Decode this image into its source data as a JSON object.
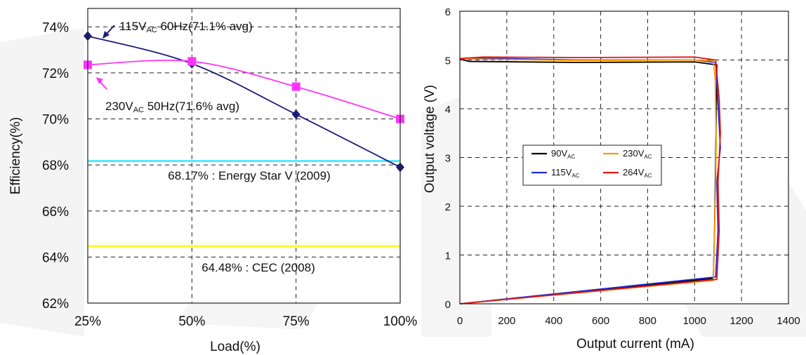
{
  "chart_data": [
    {
      "type": "line",
      "xlabel": "Load(%)",
      "ylabel": "Efficiency(%)",
      "categories": [
        "25%",
        "50%",
        "75%",
        "100%"
      ],
      "x": [
        25,
        50,
        75,
        100
      ],
      "xlim": [
        25,
        100
      ],
      "ylim": [
        62,
        74.8
      ],
      "yticks": [
        62,
        64,
        66,
        68,
        70,
        72,
        74
      ],
      "ytick_labels": [
        "62%",
        "64%",
        "66%",
        "68%",
        "70%",
        "72%",
        "74%"
      ],
      "grid": true,
      "series": [
        {
          "name": "115VAC 60Hz(71.1% avg)",
          "name_parts": [
            "115V",
            "AC",
            " 60Hz(71.1% avg)"
          ],
          "color": "#1c1c78",
          "marker": "diamond",
          "values": [
            73.6,
            72.4,
            70.2,
            67.9
          ]
        },
        {
          "name": "230VAC 50Hz(71.6% avg)",
          "name_parts": [
            "230V",
            "AC",
            " 50Hz(71.6% avg)"
          ],
          "color": "#ff33ff",
          "marker": "square",
          "values": [
            72.35,
            72.5,
            71.4,
            70.0
          ]
        }
      ],
      "reference_lines": [
        {
          "label": "68.17% : Energy Star V (2009)",
          "value": 68.17,
          "color": "#33e6ff"
        },
        {
          "label": "64.48% : CEC (2008)",
          "value": 64.48,
          "color": "#ffff00"
        }
      ]
    },
    {
      "type": "line",
      "xlabel": "Output current (mA)",
      "ylabel": "Output voltage (V)",
      "xlim": [
        0,
        1400
      ],
      "ylim": [
        0,
        6
      ],
      "xticks": [
        0,
        200,
        400,
        600,
        800,
        1000,
        1200,
        1400
      ],
      "yticks": [
        0,
        1,
        2,
        3,
        4,
        5,
        6
      ],
      "grid": true,
      "legend_position": "center-left",
      "series": [
        {
          "name": "90VAC",
          "name_parts": [
            "90V",
            "AC"
          ],
          "color": "#000000",
          "x": [
            0,
            1080,
            1085,
            1090,
            1095,
            1000,
            500,
            40,
            0
          ],
          "y": [
            0,
            0.52,
            1.5,
            3.0,
            4.9,
            4.96,
            4.95,
            4.97,
            5.02
          ]
        },
        {
          "name": "115VAC",
          "name_parts": [
            "115V",
            "AC"
          ],
          "color": "#1f2ad6",
          "x": [
            0,
            1090,
            1100,
            1095,
            1110,
            1100,
            1090,
            1000,
            500,
            80,
            0
          ],
          "y": [
            0,
            0.55,
            1.5,
            2.5,
            3.2,
            4.1,
            4.95,
            5.0,
            5.0,
            5.04,
            5.02
          ]
        },
        {
          "name": "230VAC",
          "name_parts": [
            "230V",
            "AC"
          ],
          "color": "#ff9900",
          "x": [
            0,
            1080,
            1085,
            1090,
            1092,
            1088,
            1080,
            1000,
            500,
            60,
            0
          ],
          "y": [
            0,
            0.48,
            1.5,
            2.5,
            3.3,
            4.6,
            4.98,
            5.0,
            4.99,
            5.02,
            5.03
          ]
        },
        {
          "name": "264VAC",
          "name_parts": [
            "264V",
            "AC"
          ],
          "color": "#e01818",
          "x": [
            0,
            1095,
            1105,
            1100,
            1110,
            1105,
            1090,
            1000,
            500,
            100,
            0
          ],
          "y": [
            0,
            0.5,
            1.5,
            2.5,
            3.5,
            4.2,
            5.0,
            5.06,
            5.05,
            5.06,
            5.03
          ]
        }
      ]
    }
  ]
}
